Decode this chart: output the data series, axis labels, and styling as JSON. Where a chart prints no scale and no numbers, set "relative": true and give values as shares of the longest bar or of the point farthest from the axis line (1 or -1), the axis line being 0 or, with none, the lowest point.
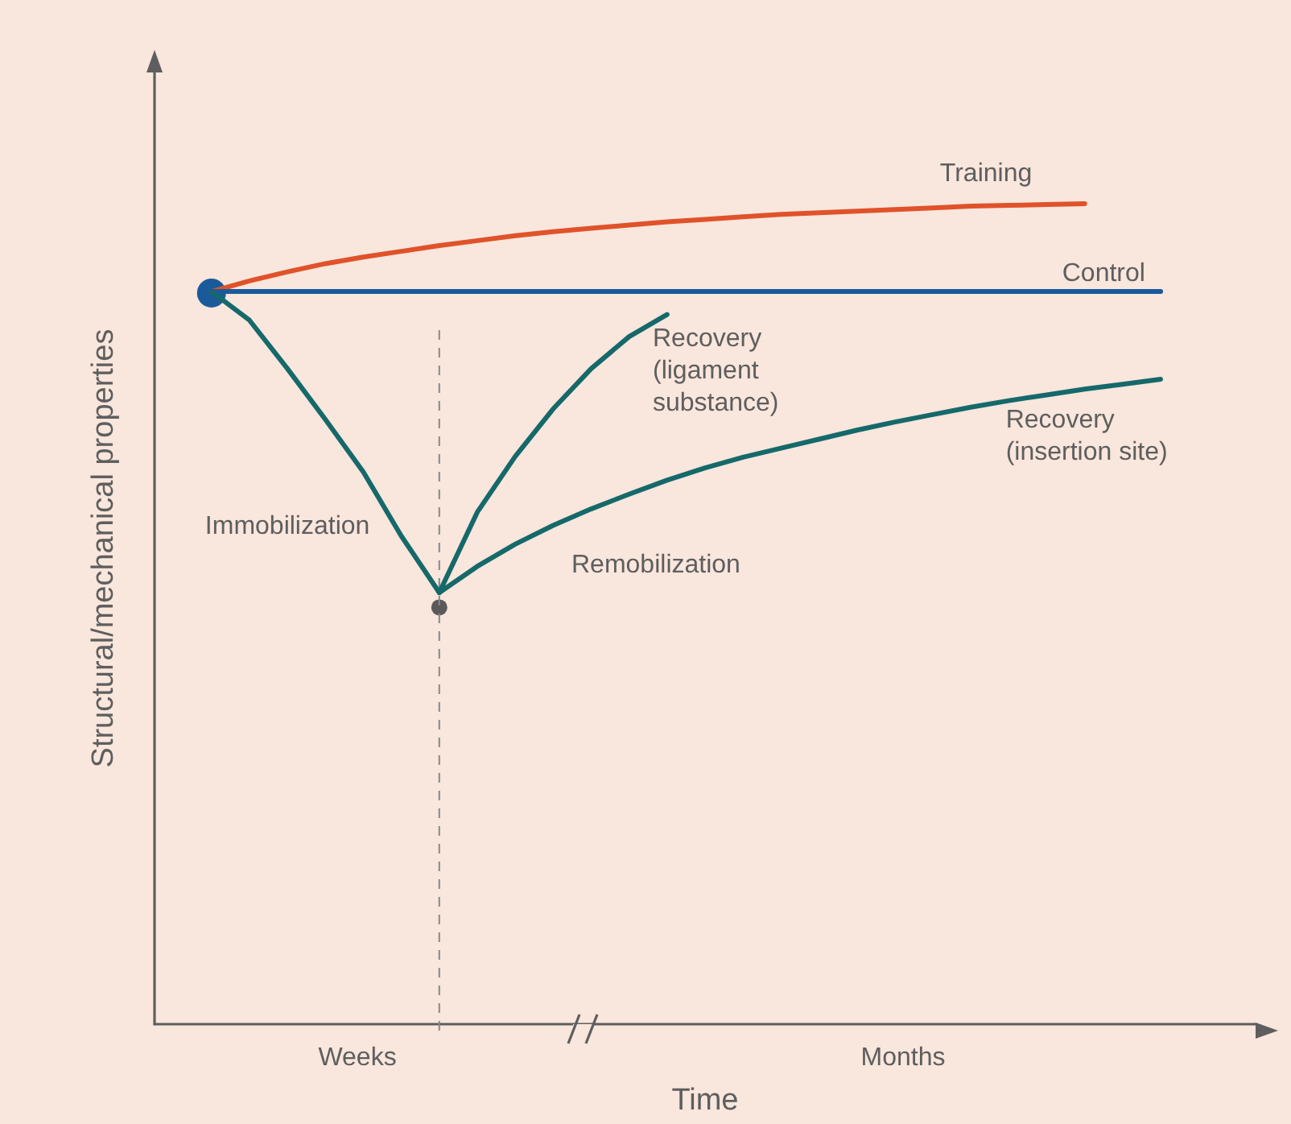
{
  "chart_data": {
    "type": "line",
    "relative": true,
    "xlabel": "Time",
    "ylabel": "Structural/mechanical properties",
    "categories": [
      null,
      null,
      null,
      null,
      null,
      null,
      null,
      null,
      null,
      null,
      null,
      null,
      null,
      null,
      null,
      null,
      null,
      null,
      null,
      null,
      null,
      null,
      null,
      null,
      null,
      null,
      null,
      null,
      null
    ],
    "series": [
      {
        "name": "Training",
        "color": "#e0522a",
        "values": [
          null,
          0.893,
          0.906,
          0.917,
          0.927,
          0.935,
          0.942,
          0.949,
          0.955,
          0.961,
          0.966,
          0.97,
          0.974,
          0.978,
          0.981,
          0.984,
          0.987,
          0.989,
          0.991,
          0.993,
          0.995,
          0.997,
          0.998,
          0.999,
          1.0,
          null,
          null,
          null,
          null
        ]
      },
      {
        "name": "Control",
        "color": "#1a5a9a",
        "values": [
          null,
          0.893,
          0.893,
          0.893,
          0.893,
          0.893,
          0.893,
          0.893,
          0.893,
          0.893,
          0.893,
          0.893,
          0.893,
          0.893,
          0.893,
          0.893,
          0.893,
          0.893,
          0.893,
          0.893,
          0.893,
          0.893,
          0.893,
          0.893,
          0.893,
          0.893,
          0.893,
          null,
          null
        ]
      },
      {
        "name": "Immobilization",
        "color": "#15696a",
        "values": [
          null,
          0.893,
          0.858,
          0.799,
          0.737,
          0.673,
          0.595,
          0.526,
          null,
          null,
          null,
          null,
          null,
          null,
          null,
          null,
          null,
          null,
          null,
          null,
          null,
          null,
          null,
          null,
          null,
          null,
          null,
          null,
          null
        ]
      },
      {
        "name": "Recovery (ligament substance)",
        "color": "#15696a",
        "values": [
          null,
          null,
          null,
          null,
          null,
          null,
          null,
          0.526,
          0.624,
          0.692,
          0.75,
          0.799,
          0.838,
          0.865,
          null,
          null,
          null,
          null,
          null,
          null,
          null,
          null,
          null,
          null,
          null,
          null,
          null,
          null,
          null
        ]
      },
      {
        "name": "Recovery (insertion site)",
        "color": "#15696a",
        "values": [
          null,
          null,
          null,
          null,
          null,
          null,
          null,
          0.526,
          0.558,
          0.585,
          0.608,
          0.628,
          0.646,
          0.663,
          0.678,
          0.691,
          0.702,
          0.713,
          0.724,
          0.734,
          0.743,
          0.752,
          0.76,
          0.767,
          0.774,
          0.78,
          0.786,
          null,
          null
        ]
      }
    ],
    "annotations": [
      "Remobilization",
      "Weeks",
      "Months"
    ],
    "marker": "none",
    "line_style": "solid",
    "grid": false,
    "legend": false
  }
}
